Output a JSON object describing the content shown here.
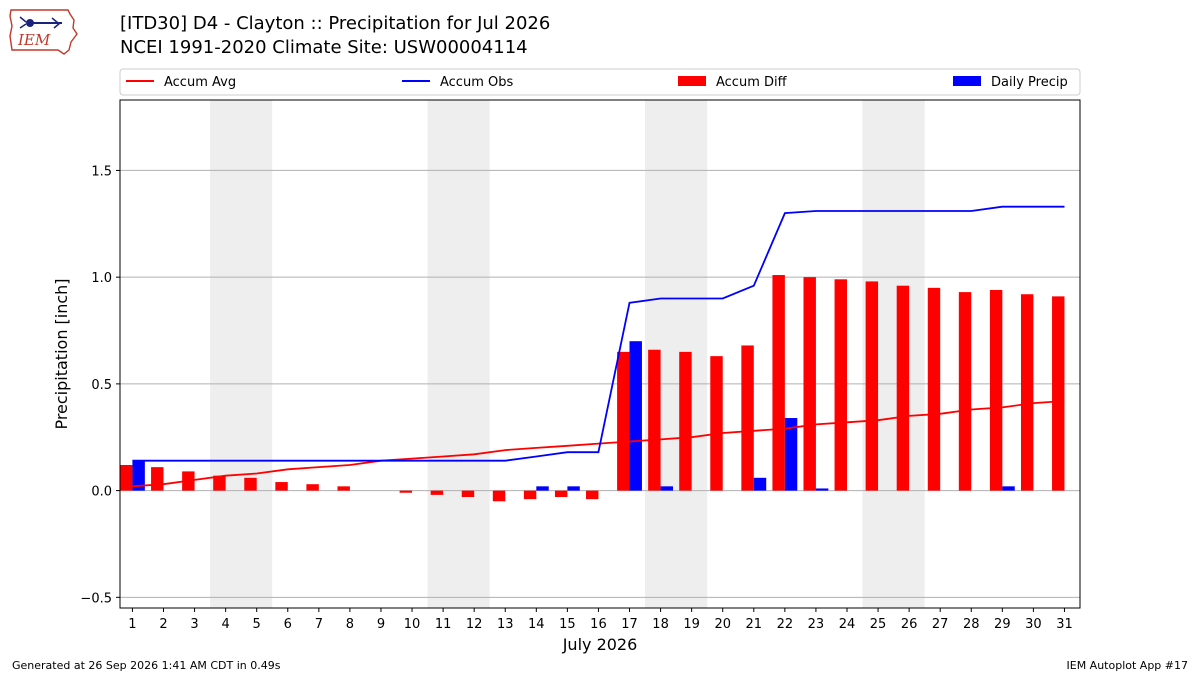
{
  "header": {
    "title_line1": "[ITD30] D4 - Clayton  :: Precipitation for Jul 2026",
    "title_line2": "NCEI 1991-2020 Climate Site: USW00004114",
    "logo_text": "IEM"
  },
  "footer": {
    "generated": "Generated at 26 Sep 2026 1:41 AM CDT in 0.49s",
    "app": "IEM Autoplot App #17"
  },
  "colors": {
    "accum_avg": "#ff0000",
    "accum_obs": "#0000ff",
    "accum_diff": "#ff0000",
    "daily_precip": "#0000ff",
    "weekend_band": "#eeeeee",
    "grid": "#b0b0b0",
    "logo": "#c0392b"
  },
  "chart_data": {
    "type": "bar",
    "title": "[ITD30] D4 - Clayton  :: Precipitation for Jul 2026",
    "xlabel": "July 2026",
    "ylabel": "Precipitation [inch]",
    "ylim": [
      -0.55,
      1.83
    ],
    "xlim": [
      0.6,
      31.5
    ],
    "yticks": [
      -0.5,
      0.0,
      0.5,
      1.0,
      1.5
    ],
    "ytick_labels": [
      "−0.5",
      "0.0",
      "0.5",
      "1.0",
      "1.5"
    ],
    "grid": true,
    "legend_position": "top",
    "days": [
      1,
      2,
      3,
      4,
      5,
      6,
      7,
      8,
      9,
      10,
      11,
      12,
      13,
      14,
      15,
      16,
      17,
      18,
      19,
      20,
      21,
      22,
      23,
      24,
      25,
      26,
      27,
      28,
      29,
      30,
      31
    ],
    "weekend_bands": [
      [
        3.5,
        5.5
      ],
      [
        10.5,
        12.5
      ],
      [
        17.5,
        19.5
      ],
      [
        24.5,
        26.5
      ]
    ],
    "series": [
      {
        "name": "Accum Avg",
        "kind": "line",
        "values": [
          0.02,
          0.03,
          0.05,
          0.07,
          0.08,
          0.1,
          0.11,
          0.12,
          0.14,
          0.15,
          0.16,
          0.17,
          0.19,
          0.2,
          0.21,
          0.22,
          0.23,
          0.24,
          0.25,
          0.27,
          0.28,
          0.29,
          0.31,
          0.32,
          0.33,
          0.35,
          0.36,
          0.38,
          0.39,
          0.41,
          0.42
        ]
      },
      {
        "name": "Accum Obs",
        "kind": "line",
        "values": [
          0.14,
          0.14,
          0.14,
          0.14,
          0.14,
          0.14,
          0.14,
          0.14,
          0.14,
          0.14,
          0.14,
          0.14,
          0.14,
          0.16,
          0.18,
          0.18,
          0.88,
          0.9,
          0.9,
          0.9,
          0.96,
          1.3,
          1.31,
          1.31,
          1.31,
          1.31,
          1.31,
          1.31,
          1.33,
          1.33,
          1.33
        ]
      },
      {
        "name": "Accum Diff",
        "kind": "bar",
        "values": [
          0.12,
          0.11,
          0.09,
          0.07,
          0.06,
          0.04,
          0.03,
          0.02,
          0.0,
          -0.01,
          -0.02,
          -0.03,
          -0.05,
          -0.04,
          -0.03,
          -0.04,
          0.65,
          0.66,
          0.65,
          0.63,
          0.68,
          1.01,
          1.0,
          0.99,
          0.98,
          0.96,
          0.95,
          0.93,
          0.94,
          0.92,
          0.91
        ]
      },
      {
        "name": "Daily Precip",
        "kind": "bar",
        "values": [
          0.14,
          0,
          0,
          0,
          0,
          0,
          0,
          0,
          0,
          0,
          0,
          0,
          0,
          0.02,
          0.02,
          0,
          0.7,
          0.02,
          0,
          0,
          0.06,
          0.34,
          0.01,
          0,
          0,
          0,
          0,
          0,
          0.02,
          0,
          0
        ]
      }
    ]
  }
}
